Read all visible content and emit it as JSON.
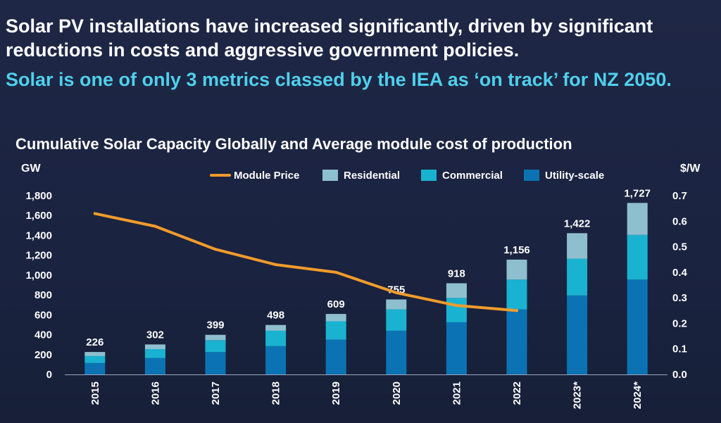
{
  "headline": "Solar PV installations have increased significantly, driven by significant reductions in costs and aggressive government policies.",
  "subheadline": "Solar is one of only 3 metrics classed by the IEA as ‘on track’ for NZ 2050.",
  "colors": {
    "background": "#1c2542",
    "residential": "#8ebfcf",
    "commercial": "#1ab2d1",
    "utility": "#0b73b3",
    "module_price": "#f29b2c",
    "subheadline": "#4fd0ec"
  },
  "chart_data": {
    "type": "bar",
    "stacked": true,
    "title": "Cumulative Solar Capacity Globally and Average module cost of production",
    "ylabel": "GW",
    "y2label": "$/W",
    "ylim": [
      0,
      1800
    ],
    "y2lim": [
      0,
      0.7
    ],
    "yticks": [
      "0",
      "200",
      "400",
      "600",
      "800",
      "1,000",
      "1,200",
      "1,400",
      "1,600",
      "1,800"
    ],
    "y2ticks": [
      "0.0",
      "0.1",
      "0.2",
      "0.3",
      "0.4",
      "0.5",
      "0.6",
      "0.7"
    ],
    "categories": [
      "2015",
      "2016",
      "2017",
      "2018",
      "2019",
      "2020",
      "2021",
      "2022",
      "2023*",
      "2024*"
    ],
    "totals": [
      226,
      302,
      399,
      498,
      609,
      755,
      918,
      1156,
      1422,
      1727
    ],
    "total_labels": [
      "226",
      "302",
      "399",
      "498",
      "609",
      "755",
      "918",
      "1,156",
      "1,422",
      "1,727"
    ],
    "legend_position": "top",
    "series": [
      {
        "name": "Utility-scale",
        "color": "#0b73b3",
        "values": [
          115,
          165,
          225,
          285,
          350,
          440,
          525,
          655,
          795,
          955
        ]
      },
      {
        "name": "Commercial",
        "color": "#1ab2d1",
        "values": [
          70,
          90,
          120,
          155,
          185,
          215,
          245,
          300,
          370,
          450
        ]
      },
      {
        "name": "Residential",
        "color": "#8ebfcf",
        "values": [
          41,
          47,
          54,
          58,
          74,
          100,
          148,
          201,
          257,
          322
        ]
      }
    ],
    "line": {
      "name": "Module Price",
      "color": "#f29b2c",
      "axis": "right",
      "categories": [
        "2015",
        "2016",
        "2017",
        "2018",
        "2019",
        "2020",
        "2021",
        "2022"
      ],
      "values": [
        0.63,
        0.58,
        0.49,
        0.43,
        0.4,
        0.32,
        0.27,
        0.25
      ]
    },
    "legend": [
      "Module Price",
      "Residential",
      "Commercial",
      "Utility-scale"
    ]
  }
}
